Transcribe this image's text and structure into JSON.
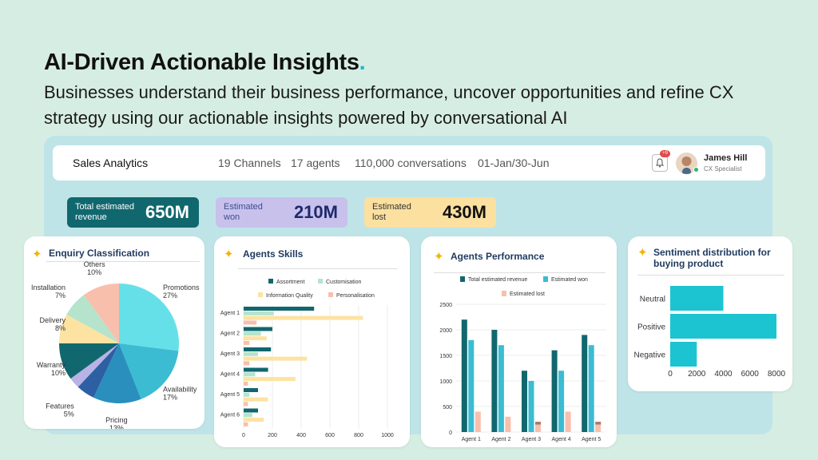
{
  "hero": {
    "title": "AI-Driven Actionable Insights",
    "title_dot": ".",
    "subtitle": "Businesses understand their business performance, uncover opportunities and refine CX strategy using our actionable insights powered by conversational AI"
  },
  "topbar": {
    "title": "Sales Analytics",
    "channels": "19 Channels",
    "agents": "17 agents",
    "conversations": "110,000 conversations",
    "date_range": "01-Jan/30-Jun",
    "notification_count": "+9",
    "user_name": "James Hill",
    "user_role": "CX Specialist"
  },
  "kpis": [
    {
      "label": "Total estimated revenue",
      "value": "650M",
      "color": "#11676e"
    },
    {
      "label": "Estimated won",
      "value": "210M",
      "color": "#c8c1ec"
    },
    {
      "label": "Estimated lost",
      "value": "430M",
      "color": "#fbe0a0"
    }
  ],
  "cards": {
    "enquiry": {
      "title": "Enquiry Classification"
    },
    "skills": {
      "title": "Agents Skills"
    },
    "performance": {
      "title": "Agents Performance"
    },
    "sentiment": {
      "title": "Sentiment distribution for buying product"
    }
  },
  "chart_data": [
    {
      "type": "pie",
      "title": "Enquiry Classification",
      "slices": [
        {
          "name": "Promotions",
          "value": 27,
          "label": "27%",
          "color": "#66e0e8"
        },
        {
          "name": "Availability",
          "value": 17,
          "label": "17%",
          "color": "#3bbcd3"
        },
        {
          "name": "Pricing",
          "value": 13,
          "label": "13%",
          "color": "#2a8fbd"
        },
        {
          "name": "Features",
          "value": 5,
          "label": "5%",
          "color": "#2d5fa3"
        },
        {
          "name": "",
          "value": 3,
          "label": "",
          "color": "#b8b2e6"
        },
        {
          "name": "Warranty",
          "value": 10,
          "label": "10%",
          "color": "#11676e"
        },
        {
          "name": "Delivery",
          "value": 8,
          "label": "8%",
          "color": "#fde3a2"
        },
        {
          "name": "Installation",
          "value": 7,
          "label": "7%",
          "color": "#b5e3cc"
        },
        {
          "name": "Others",
          "value": 10,
          "label": "10%",
          "color": "#f8bfac"
        }
      ]
    },
    {
      "type": "bar",
      "orientation": "horizontal",
      "title": "Agents Skills",
      "categories": [
        "Agent 1",
        "Agent 2",
        "Agent 3",
        "Agent 4",
        "Agent 5",
        "Agent 6"
      ],
      "series": [
        {
          "name": "Assortment",
          "color": "#11676e",
          "values": [
            490,
            200,
            190,
            170,
            100,
            100
          ]
        },
        {
          "name": "Customisation",
          "color": "#b5e3cc",
          "values": [
            210,
            120,
            100,
            80,
            40,
            60
          ]
        },
        {
          "name": "Information Quality",
          "color": "#fde3a2",
          "values": [
            830,
            160,
            440,
            360,
            170,
            140
          ]
        },
        {
          "name": "Personalisation",
          "color": "#f8bfac",
          "values": [
            90,
            40,
            40,
            30,
            30,
            30
          ]
        }
      ],
      "xlim": [
        0,
        1000
      ],
      "xticks": [
        "0",
        "200",
        "400",
        "600",
        "800",
        "1000"
      ],
      "legend": "top"
    },
    {
      "type": "bar",
      "title": "Agents Performance",
      "categories": [
        "Agent 1",
        "Agent 2",
        "Agent 3",
        "Agent 4",
        "Agent 5"
      ],
      "series": [
        {
          "name": "Total estimated revenue",
          "color": "#11676e",
          "values": [
            2200,
            2000,
            1200,
            1600,
            1900
          ]
        },
        {
          "name": "Estimated won",
          "color": "#3bbcd3",
          "values": [
            1800,
            1700,
            1000,
            1200,
            1700
          ]
        },
        {
          "name": "Estimated lost",
          "color": "#f8bfac",
          "values": [
            400,
            300,
            200,
            400,
            200
          ],
          "overlay": [
            0,
            0,
            150,
            0,
            150
          ]
        }
      ],
      "ylim": [
        0,
        2500
      ],
      "yticks": [
        "0",
        "500",
        "1000",
        "1500",
        "2000",
        "2500"
      ],
      "legend": "top"
    },
    {
      "type": "bar",
      "orientation": "horizontal",
      "title": "Sentiment distribution for buying product",
      "categories": [
        "Neutral",
        "Positive",
        "Negative"
      ],
      "values": [
        4000,
        8000,
        2000
      ],
      "color": "#1bc4d0",
      "xlim": [
        0,
        8000
      ],
      "xticks": [
        "0",
        "2000",
        "4000",
        "6000",
        "8000"
      ]
    }
  ]
}
